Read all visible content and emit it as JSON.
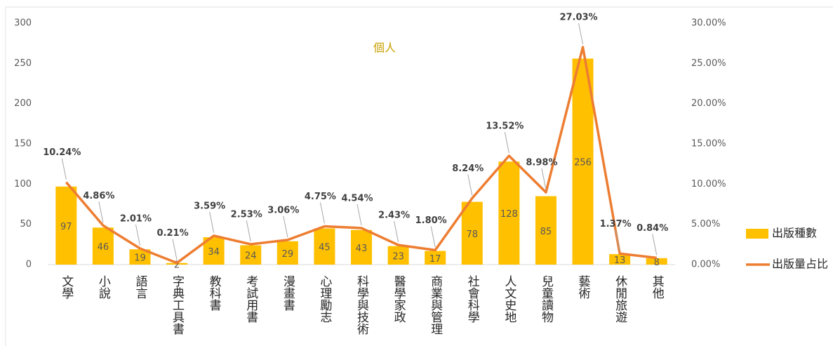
{
  "chart_data": {
    "type": "bar_line",
    "title": "個人",
    "categories": [
      "文學",
      "小說",
      "語言",
      "字典工具書",
      "教科書",
      "考試用書",
      "漫畫書",
      "心理勵志",
      "科學與技術",
      "醫學家政",
      "商業與管理",
      "社會科學",
      "人文史地",
      "兒童讀物",
      "藝術",
      "休閒旅遊",
      "其他"
    ],
    "series": [
      {
        "name": "出版種數",
        "type": "bar",
        "color": "#ffc000",
        "values": [
          97,
          46,
          19,
          2,
          34,
          24,
          29,
          45,
          43,
          23,
          17,
          78,
          128,
          85,
          256,
          13,
          8
        ]
      },
      {
        "name": "出版量占比",
        "type": "line",
        "axis": "y2",
        "color": "#ed7d31",
        "values": [
          10.24,
          4.86,
          2.01,
          0.21,
          3.59,
          2.53,
          3.06,
          4.75,
          4.54,
          2.43,
          1.8,
          8.24,
          13.52,
          8.98,
          27.03,
          1.37,
          0.84
        ],
        "value_labels": [
          "10.24%",
          "4.86%",
          "2.01%",
          "0.21%",
          "3.59%",
          "2.53%",
          "3.06%",
          "4.75%",
          "4.54%",
          "2.43%",
          "1.80%",
          "8.24%",
          "13.52%",
          "8.98%",
          "27.03%",
          "1.37%",
          "0.84%"
        ]
      }
    ],
    "ylim": [
      0,
      300
    ],
    "yticks": [
      0,
      50,
      100,
      150,
      200,
      250,
      300
    ],
    "y2lim": [
      0,
      30
    ],
    "y2ticks": [
      {
        "value": 0,
        "label": "0.00%"
      },
      {
        "value": 5,
        "label": "5.00%"
      },
      {
        "value": 10,
        "label": "10.00%"
      },
      {
        "value": 15,
        "label": "15.00%"
      },
      {
        "value": 20,
        "label": "20.00%"
      },
      {
        "value": 25,
        "label": "25.00%"
      },
      {
        "value": 30,
        "label": "30.00%"
      }
    ],
    "legend": "right"
  }
}
